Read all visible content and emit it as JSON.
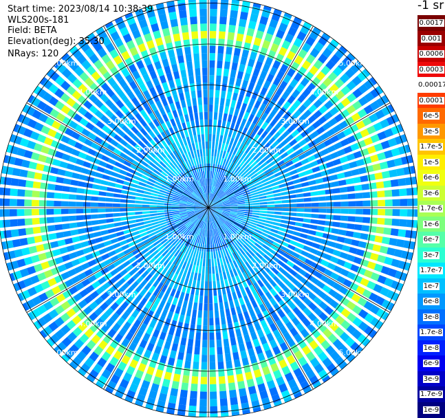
{
  "info": {
    "start_time": "Start time: 2023/08/14 10:38:39",
    "instrument": "WLS200s-181",
    "field": "Field: BETA",
    "elevation": "Elevation(deg): 35.30",
    "nrays": "NRays: 120"
  },
  "colorbar": {
    "title": "-1 sr",
    "labels": [
      "0.0017",
      "0.001",
      "0.0006",
      "0.0003",
      "0.00017",
      "0.0001",
      "6e-5",
      "3e-5",
      "1.7e-5",
      "1e-5",
      "6e-6",
      "3e-6",
      "1.7e-6",
      "1e-6",
      "6e-7",
      "3e-7",
      "1.7e-7",
      "1e-7",
      "6e-8",
      "3e-8",
      "1.7e-8",
      "1e-8",
      "6e-9",
      "3e-9",
      "1.7e-9",
      "1e-9"
    ],
    "colors": [
      "#7a0000",
      "#9a0000",
      "#c80000",
      "#ee0a0a",
      "#ffffff",
      "#ff3c00",
      "#ff6a00",
      "#ff9800",
      "#ffc400",
      "#ffee00",
      "#f0ff10",
      "#ccff33",
      "#a8ff55",
      "#7dff7d",
      "#55ffa8",
      "#2bffd2",
      "#00e8ff",
      "#00c0ff",
      "#0098ff",
      "#0070ff",
      "#0048ff",
      "#0020ff",
      "#0000f0",
      "#0000c8",
      "#0000a0",
      "#000080"
    ]
  },
  "chart_data": {
    "type": "heatmap",
    "projection": "polar (PPI scan)",
    "field": "BETA",
    "nrays": 120,
    "range_rings_km": [
      1.0,
      2.0,
      3.0,
      4.0,
      5.0
    ],
    "range_ring_labels": [
      "1.00km",
      "2.00km",
      "3.00km",
      "4.00km",
      "5.00km"
    ],
    "radial_spokes_deg": [
      0,
      30,
      60,
      90,
      120,
      150,
      180,
      210,
      240,
      270,
      300,
      330
    ],
    "aerosol_layer_ring_km": 4.2,
    "max_range_km": 5.8,
    "colorscale_range": [
      1e-09,
      0.0017
    ],
    "color_scale": "log"
  }
}
